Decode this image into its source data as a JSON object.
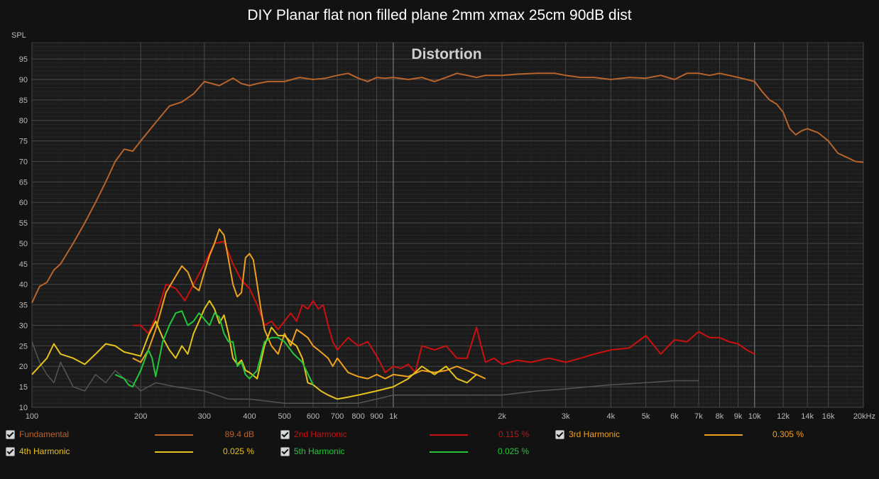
{
  "title": "DIY Planar flat non filled plane 2mm xmax 25cm 90dB dist",
  "colors": {
    "background": "#121212",
    "plot_background": "#1b1b1b",
    "fundamental": "#b8642a",
    "h2": "#cc1010",
    "h3": "#f0a020",
    "h4": "#e6c21c",
    "h5": "#22c83a",
    "noise": "#555555"
  },
  "legend": [
    {
      "label": "Fundamental",
      "value": "89.4 dB",
      "color": "#b8642a"
    },
    {
      "label": "2nd Harmonic",
      "value": "0.115 %",
      "color": "#cc1010"
    },
    {
      "label": "3rd Harmonic",
      "value": "0.305 %",
      "color": "#f0a020"
    },
    {
      "label": "4th Harmonic",
      "value": "0.025 %",
      "color": "#e6c21c"
    },
    {
      "label": "5th Harmonic",
      "value": "0.025 %",
      "color": "#22c83a"
    }
  ],
  "chart_data": {
    "type": "line",
    "title": "Distortion",
    "ylabel": "SPL",
    "xscale": "log",
    "xlim": [
      100,
      20000
    ],
    "ylim": [
      10,
      99
    ],
    "grid": true,
    "y_ticks": [
      10,
      15,
      20,
      25,
      30,
      35,
      40,
      45,
      50,
      55,
      60,
      65,
      70,
      75,
      80,
      85,
      90,
      95
    ],
    "x_ticks": [
      {
        "v": 100,
        "t": "100"
      },
      {
        "v": 200,
        "t": "200"
      },
      {
        "v": 300,
        "t": "300"
      },
      {
        "v": 400,
        "t": "400"
      },
      {
        "v": 500,
        "t": "500"
      },
      {
        "v": 600,
        "t": "600"
      },
      {
        "v": 700,
        "t": "700"
      },
      {
        "v": 800,
        "t": "800"
      },
      {
        "v": 900,
        "t": "900"
      },
      {
        "v": 1000,
        "t": "1k"
      },
      {
        "v": 2000,
        "t": "2k"
      },
      {
        "v": 3000,
        "t": "3k"
      },
      {
        "v": 4000,
        "t": "4k"
      },
      {
        "v": 5000,
        "t": "5k"
      },
      {
        "v": 6000,
        "t": "6k"
      },
      {
        "v": 7000,
        "t": "7k"
      },
      {
        "v": 8000,
        "t": "8k"
      },
      {
        "v": 9000,
        "t": "9k"
      },
      {
        "v": 10000,
        "t": "10k"
      },
      {
        "v": 12000,
        "t": "12k"
      },
      {
        "v": 14000,
        "t": "14k"
      },
      {
        "v": 16000,
        "t": "16k"
      },
      {
        "v": 20000,
        "t": "20kHz"
      }
    ],
    "series": [
      {
        "name": "Fundamental",
        "color": "#b8642a",
        "x": [
          100,
          105,
          110,
          115,
          120,
          130,
          140,
          150,
          160,
          170,
          180,
          190,
          200,
          220,
          240,
          260,
          280,
          300,
          330,
          360,
          380,
          400,
          420,
          450,
          500,
          550,
          600,
          650,
          700,
          750,
          800,
          850,
          900,
          950,
          1000,
          1100,
          1200,
          1300,
          1400,
          1500,
          1600,
          1700,
          1800,
          2000,
          2200,
          2500,
          2800,
          3000,
          3300,
          3600,
          4000,
          4500,
          5000,
          5500,
          6000,
          6500,
          7000,
          7500,
          8000,
          8500,
          9000,
          9500,
          10000,
          10500,
          11000,
          11500,
          12000,
          12500,
          13000,
          13500,
          14000,
          15000,
          16000,
          17000,
          18000,
          19000,
          20000
        ],
        "y": [
          35.5,
          39.5,
          40.5,
          43.5,
          45,
          50,
          55,
          60,
          65,
          70,
          73,
          72.5,
          75,
          79.5,
          83.5,
          84.5,
          86.5,
          89.5,
          88.5,
          90.3,
          89,
          88.5,
          89,
          89.5,
          89.5,
          90.5,
          90,
          90.3,
          91,
          91.5,
          90.3,
          89.5,
          90.5,
          90.3,
          90.5,
          90,
          90.5,
          89.5,
          90.5,
          91.5,
          91,
          90.5,
          91,
          91,
          91.3,
          91.5,
          91.5,
          91,
          90.5,
          90.5,
          90,
          90.5,
          90.3,
          91,
          90,
          91.5,
          91.5,
          91,
          91.5,
          91,
          90.5,
          90,
          89.5,
          87,
          85,
          84,
          82,
          78,
          76.5,
          77.5,
          78,
          77,
          75,
          72,
          71,
          70,
          69.8
        ]
      },
      {
        "name": "2nd Harmonic",
        "color": "#cc1010",
        "x": [
          190,
          200,
          210,
          220,
          235,
          250,
          265,
          280,
          300,
          320,
          340,
          360,
          380,
          400,
          420,
          440,
          460,
          480,
          500,
          520,
          540,
          560,
          580,
          600,
          620,
          640,
          660,
          680,
          700,
          750,
          800,
          850,
          900,
          950,
          1000,
          1050,
          1100,
          1150,
          1200,
          1300,
          1400,
          1500,
          1600,
          1700,
          1750,
          1800,
          1900,
          2000,
          2200,
          2400,
          2700,
          3000,
          3300,
          3600,
          4000,
          4500,
          5000,
          5500,
          6000,
          6500,
          7000,
          7500,
          8000,
          8500,
          9000,
          9500,
          10000
        ],
        "y": [
          30,
          30,
          28,
          32,
          40,
          39,
          36,
          40,
          45,
          50,
          50.5,
          45,
          41,
          39,
          35,
          30,
          31,
          29,
          31,
          33,
          31,
          35,
          34,
          36,
          34,
          35,
          30,
          26,
          24,
          27,
          25,
          26,
          22.5,
          18.5,
          20,
          19.5,
          20.5,
          18.5,
          25,
          24,
          25,
          22,
          22,
          29.5,
          25,
          21,
          22,
          20.5,
          21.5,
          21,
          22,
          21,
          22,
          23,
          24,
          24.5,
          27.5,
          23,
          26.5,
          26,
          28.5,
          27,
          27,
          26,
          25.5,
          24,
          23
        ]
      },
      {
        "name": "3rd Harmonic",
        "color": "#f0a020",
        "x": [
          190,
          200,
          210,
          220,
          235,
          250,
          260,
          270,
          280,
          290,
          300,
          310,
          320,
          330,
          340,
          350,
          360,
          370,
          380,
          390,
          400,
          410,
          420,
          430,
          440,
          460,
          480,
          500,
          520,
          540,
          560,
          580,
          600,
          620,
          640,
          660,
          680,
          700,
          750,
          800,
          850,
          900,
          950,
          1000,
          1100,
          1200,
          1300,
          1400,
          1500,
          1600,
          1700,
          1800
        ],
        "y": [
          22,
          21,
          24,
          29,
          38,
          42,
          44.5,
          43,
          39.5,
          38.5,
          43,
          47,
          50,
          53.5,
          52,
          46,
          40,
          37,
          38,
          46.5,
          47.5,
          46,
          40,
          34,
          29,
          25,
          23,
          28,
          25,
          29,
          28,
          27,
          25,
          24,
          23,
          22,
          20,
          22,
          18.5,
          17.5,
          17,
          18,
          17,
          18,
          17.5,
          19,
          18.5,
          19,
          20,
          19,
          18,
          17
        ]
      },
      {
        "name": "4th Harmonic",
        "color": "#e6c21c",
        "x": [
          100,
          110,
          115,
          120,
          130,
          140,
          150,
          160,
          170,
          180,
          190,
          200,
          210,
          220,
          230,
          240,
          250,
          260,
          270,
          280,
          290,
          300,
          310,
          320,
          330,
          340,
          350,
          360,
          370,
          380,
          390,
          400,
          420,
          440,
          460,
          480,
          500,
          520,
          540,
          560,
          580,
          600,
          630,
          660,
          700,
          750,
          800,
          900,
          1000,
          1100,
          1200,
          1300,
          1400,
          1500,
          1600,
          1700
        ],
        "y": [
          18,
          22,
          25.5,
          23,
          22,
          20.5,
          23,
          25.5,
          25,
          23.5,
          23,
          22.5,
          27.5,
          31,
          27,
          24,
          22,
          25,
          23,
          28,
          31,
          34,
          36,
          34,
          30.5,
          32.5,
          28,
          22,
          20.5,
          21.5,
          19,
          18.5,
          17,
          25,
          29.5,
          27.5,
          27.5,
          26,
          25,
          22,
          16,
          15.5,
          14,
          13,
          12,
          12.5,
          13,
          14,
          15,
          17,
          20,
          18,
          20,
          17,
          16,
          18
        ]
      },
      {
        "name": "5th Harmonic",
        "color": "#22c83a",
        "x": [
          170,
          180,
          185,
          190,
          200,
          210,
          215,
          220,
          230,
          240,
          250,
          260,
          270,
          280,
          290,
          300,
          310,
          320,
          330,
          340,
          350,
          360,
          370,
          380,
          390,
          400,
          420,
          440,
          460,
          480,
          500,
          530,
          560,
          600
        ],
        "y": [
          18,
          17,
          15.5,
          15,
          19,
          24,
          22,
          17.5,
          26,
          30,
          33,
          33.5,
          30,
          31,
          33,
          31.5,
          30,
          33,
          32,
          28,
          26,
          26,
          20,
          21,
          18,
          17,
          19,
          26,
          27,
          27,
          26,
          23,
          21,
          15.5
        ]
      },
      {
        "name": "Noise",
        "color": "#555555",
        "x": [
          100,
          105,
          110,
          115,
          120,
          130,
          140,
          150,
          160,
          170,
          180,
          190,
          200,
          220,
          250,
          300,
          350,
          400,
          500,
          600,
          700,
          800,
          900,
          1000,
          1200,
          1500,
          2000,
          2500,
          3000,
          4000,
          5000,
          6000,
          7000
        ],
        "y": [
          26,
          21,
          18,
          16,
          21,
          15,
          14,
          18,
          16,
          19,
          17,
          16,
          14,
          16,
          15,
          14,
          12,
          12,
          11,
          11,
          11,
          11,
          12,
          13,
          13,
          13,
          13,
          14,
          14.5,
          15.5,
          16,
          16.5,
          16.5
        ]
      }
    ]
  }
}
